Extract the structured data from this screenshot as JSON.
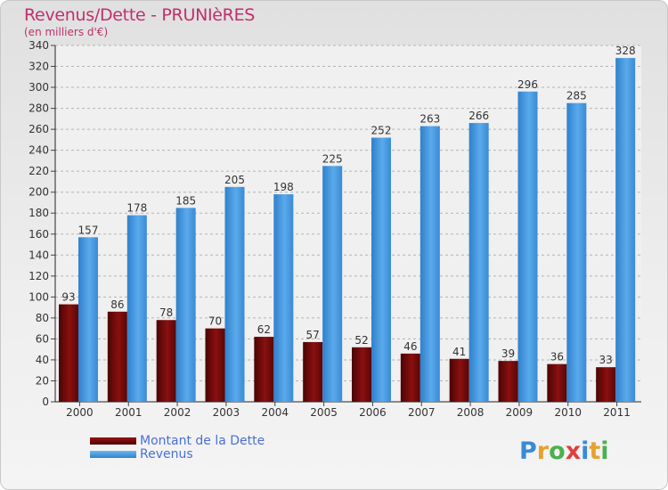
{
  "title": "Revenus/Dette - PRUNIèRES",
  "subtitle": "(en milliers d'€)",
  "brand": "Proxiti",
  "colors": {
    "debt": "#7a0a0a",
    "revenue": "#4f9ee0",
    "title": "#c0306a",
    "legend_text": "#4a6fd8"
  },
  "chart_data": {
    "type": "bar",
    "title": "Revenus/Dette - PRUNIèRES",
    "ylabel": "(en milliers d'€)",
    "xlabel": "",
    "ylim": [
      0,
      340
    ],
    "yticks": [
      0,
      20,
      40,
      60,
      80,
      100,
      120,
      140,
      160,
      180,
      200,
      220,
      240,
      260,
      280,
      300,
      320,
      340
    ],
    "grid": true,
    "legend_position": "bottom-left",
    "categories": [
      "2000",
      "2001",
      "2002",
      "2003",
      "2004",
      "2005",
      "2006",
      "2007",
      "2008",
      "2009",
      "2010",
      "2011"
    ],
    "series": [
      {
        "name": "Montant de la Dette",
        "values": [
          93,
          86,
          78,
          70,
          62,
          57,
          52,
          46,
          41,
          39,
          36,
          33
        ]
      },
      {
        "name": "Revenus",
        "values": [
          157,
          178,
          185,
          205,
          198,
          225,
          252,
          263,
          266,
          296,
          285,
          328
        ]
      }
    ]
  }
}
